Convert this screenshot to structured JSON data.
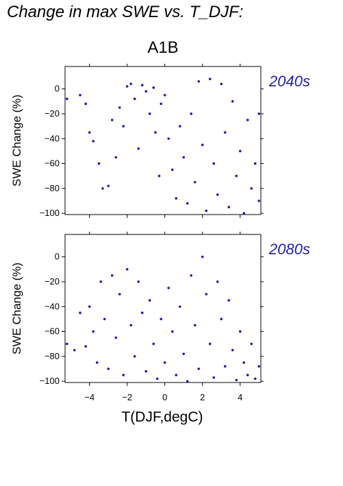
{
  "figure": {
    "title": "Change in max SWE vs. T_DJF:",
    "scenario": "A1B",
    "xlabel": "T(DJF,degC)",
    "point_color": "#1a1ac0",
    "tag_color": "#2222aa"
  },
  "chart_data": [
    {
      "type": "scatter",
      "panel_label": "2040s",
      "ylabel": "SWE Change (%)",
      "xlim": [
        -5.3,
        5.1
      ],
      "ylim": [
        -101,
        18
      ],
      "xticks": [
        -4,
        -2,
        0,
        2,
        4
      ],
      "xtick_labels": [
        "",
        "",
        "",
        "",
        ""
      ],
      "yticks": [
        0,
        -20,
        -40,
        -60,
        -80,
        -100
      ],
      "ytick_labels": [
        "0",
        "−20",
        "−40",
        "−60",
        "−80",
        "−100"
      ],
      "points": [
        [
          -5.2,
          -8
        ],
        [
          -4.5,
          -5
        ],
        [
          -4.2,
          -12
        ],
        [
          -4.0,
          -35
        ],
        [
          -3.8,
          -42
        ],
        [
          -3.5,
          -60
        ],
        [
          -3.3,
          -80
        ],
        [
          -3.0,
          -78
        ],
        [
          -2.8,
          -25
        ],
        [
          -2.6,
          -55
        ],
        [
          -2.4,
          -15
        ],
        [
          -2.2,
          -30
        ],
        [
          -2.0,
          2
        ],
        [
          -1.8,
          4
        ],
        [
          -1.6,
          -8
        ],
        [
          -1.4,
          -48
        ],
        [
          -1.2,
          3
        ],
        [
          -1.0,
          -2
        ],
        [
          -0.8,
          -20
        ],
        [
          -0.6,
          1
        ],
        [
          -0.5,
          -35
        ],
        [
          -0.3,
          -70
        ],
        [
          -0.2,
          -12
        ],
        [
          0.0,
          -5
        ],
        [
          0.2,
          -40
        ],
        [
          0.4,
          -65
        ],
        [
          0.6,
          -88
        ],
        [
          0.8,
          -30
        ],
        [
          1.0,
          -55
        ],
        [
          1.2,
          -92
        ],
        [
          1.4,
          -20
        ],
        [
          1.6,
          -75
        ],
        [
          1.8,
          6
        ],
        [
          2.0,
          -45
        ],
        [
          2.2,
          -98
        ],
        [
          2.4,
          8
        ],
        [
          2.6,
          -60
        ],
        [
          2.8,
          -85
        ],
        [
          3.0,
          4
        ],
        [
          3.2,
          -35
        ],
        [
          3.4,
          -95
        ],
        [
          3.6,
          -10
        ],
        [
          3.8,
          -70
        ],
        [
          4.0,
          -50
        ],
        [
          4.2,
          -100
        ],
        [
          4.4,
          -25
        ],
        [
          4.6,
          -80
        ],
        [
          4.8,
          -60
        ],
        [
          5.0,
          -90
        ],
        [
          5.0,
          -20
        ]
      ]
    },
    {
      "type": "scatter",
      "panel_label": "2080s",
      "ylabel": "SWE Change (%)",
      "xlim": [
        -5.3,
        5.1
      ],
      "ylim": [
        -101,
        18
      ],
      "xticks": [
        -4,
        -2,
        0,
        2,
        4
      ],
      "xtick_labels": [
        "−4",
        "−2",
        "0",
        "2",
        "4"
      ],
      "yticks": [
        0,
        -20,
        -40,
        -60,
        -80,
        -100
      ],
      "ytick_labels": [
        "0",
        "−20",
        "−40",
        "−60",
        "−80",
        "−100"
      ],
      "points": [
        [
          -5.2,
          -70
        ],
        [
          -4.8,
          -75
        ],
        [
          -4.5,
          -45
        ],
        [
          -4.2,
          -72
        ],
        [
          -4.0,
          -40
        ],
        [
          -3.8,
          -60
        ],
        [
          -3.6,
          -85
        ],
        [
          -3.4,
          -20
        ],
        [
          -3.2,
          -50
        ],
        [
          -3.0,
          -90
        ],
        [
          -2.8,
          -15
        ],
        [
          -2.6,
          -65
        ],
        [
          -2.4,
          -30
        ],
        [
          -2.2,
          -95
        ],
        [
          -2.0,
          -10
        ],
        [
          -1.8,
          -55
        ],
        [
          -1.6,
          -80
        ],
        [
          -1.4,
          -20
        ],
        [
          -1.2,
          -45
        ],
        [
          -1.0,
          -92
        ],
        [
          -0.8,
          -35
        ],
        [
          -0.6,
          -70
        ],
        [
          -0.4,
          -98
        ],
        [
          -0.2,
          -50
        ],
        [
          0.0,
          -85
        ],
        [
          0.2,
          -25
        ],
        [
          0.4,
          -60
        ],
        [
          0.6,
          -95
        ],
        [
          0.8,
          -40
        ],
        [
          1.0,
          -78
        ],
        [
          1.2,
          -100
        ],
        [
          1.4,
          -15
        ],
        [
          1.6,
          -55
        ],
        [
          1.8,
          -90
        ],
        [
          2.0,
          0
        ],
        [
          2.2,
          -30
        ],
        [
          2.4,
          -70
        ],
        [
          2.6,
          -97
        ],
        [
          2.8,
          -20
        ],
        [
          3.0,
          -50
        ],
        [
          3.2,
          -88
        ],
        [
          3.4,
          -35
        ],
        [
          3.6,
          -75
        ],
        [
          3.8,
          -99
        ],
        [
          4.0,
          -60
        ],
        [
          4.2,
          -85
        ],
        [
          4.4,
          -95
        ],
        [
          4.6,
          -70
        ],
        [
          4.8,
          -98
        ],
        [
          5.0,
          -88
        ]
      ]
    }
  ]
}
